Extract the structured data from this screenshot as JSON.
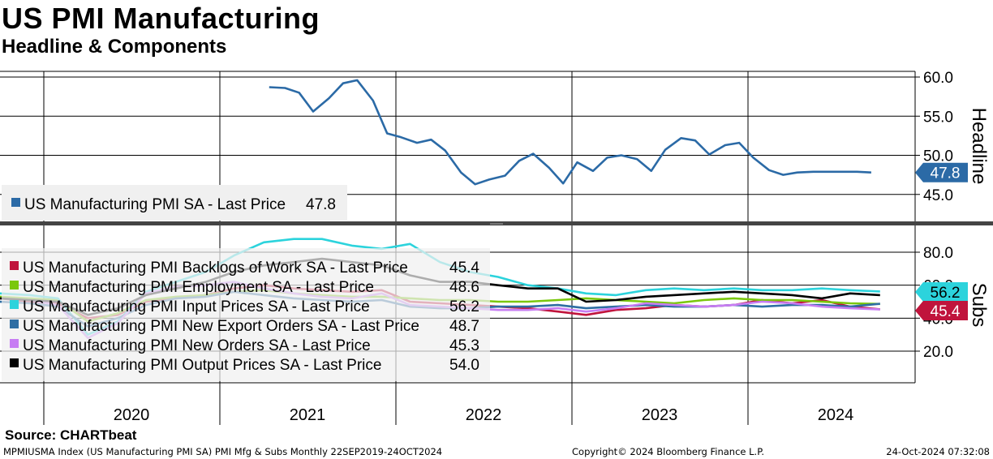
{
  "header": {
    "title": "US PMI Manufacturing",
    "subtitle": "Headline & Components"
  },
  "source": "Source:  CHARTbeat",
  "footer": {
    "left": "MPMIUSMA Index (US Manufacturing PMI SA) PMI Mfg & Subs  Monthly 22SEP2019-24OCT2024",
    "middle": "Copyright© 2024 Bloomberg Finance L.P.",
    "right": "24-Oct-2024 07:32:08"
  },
  "colors": {
    "headline": "#2b6aa6",
    "backlogs": "#c0143c",
    "employment": "#7ac70c",
    "input_prices": "#2cd3dc",
    "new_export_orders": "#2f6ea3",
    "new_orders": "#c77df3",
    "output_prices": "#000000"
  },
  "chart_data": [
    {
      "type": "line",
      "panel": "top",
      "axis_title": "Headline",
      "yticks": [
        "60.0",
        "55.0",
        "50.0",
        "45.0"
      ],
      "ylim": [
        41,
        61
      ],
      "xlim": [
        2019.7,
        2024.9
      ],
      "x_tick_labels": [
        "2020",
        "2021",
        "2022",
        "2023",
        "2024"
      ],
      "legend": [
        {
          "label": "US Manufacturing PMI SA - Last Price",
          "value": "47.8",
          "color_key": "headline"
        }
      ],
      "last_value_tag": {
        "text": "47.8",
        "value": 47.8
      },
      "series": [
        {
          "name": "US Manufacturing PMI SA",
          "color_key": "headline",
          "x": [
            2021.33,
            2021.42,
            2021.5,
            2021.58,
            2021.67,
            2021.75,
            2021.83,
            2021.92,
            2022.0,
            2022.08,
            2022.17,
            2022.25,
            2022.33,
            2022.42,
            2022.5,
            2022.58,
            2022.67,
            2022.75,
            2022.83,
            2022.92,
            2023.0,
            2023.08,
            2023.17,
            2023.25,
            2023.33,
            2023.42,
            2023.5,
            2023.58,
            2023.67,
            2023.75,
            2023.83,
            2023.92,
            2024.0,
            2024.08,
            2024.17,
            2024.25,
            2024.33,
            2024.42,
            2024.5,
            2024.58,
            2024.67,
            2024.75
          ],
          "values": [
            58.7,
            58.6,
            58.0,
            55.6,
            57.3,
            59.2,
            59.6,
            57.0,
            52.8,
            52.3,
            51.6,
            52.0,
            50.6,
            47.8,
            46.3,
            46.9,
            47.4,
            49.3,
            50.2,
            48.4,
            46.4,
            49.1,
            48.0,
            49.7,
            50.0,
            49.5,
            48.0,
            50.7,
            52.2,
            51.9,
            50.1,
            51.3,
            51.6,
            49.7,
            48.1,
            47.5,
            47.8,
            47.9,
            47.9,
            47.9,
            47.9,
            47.8
          ]
        }
      ]
    },
    {
      "type": "line",
      "panel": "bottom",
      "axis_title": "Subs",
      "yticks": [
        "80.0",
        "60.0",
        "40.0",
        "20.0"
      ],
      "ylim": [
        12,
        93
      ],
      "xlim": [
        2019.7,
        2024.9
      ],
      "legend": [
        {
          "label": "US Manufacturing PMI Backlogs of Work SA - Last Price",
          "value": "45.4",
          "color_key": "backlogs"
        },
        {
          "label": "US Manufacturing PMI Employment SA - Last Price",
          "value": "48.6",
          "color_key": "employment"
        },
        {
          "label": "US Manufacturing PMI Input Prices SA - Last Price",
          "value": "56.2",
          "color_key": "input_prices"
        },
        {
          "label": "US Manufacturing PMI New Export Orders SA - Last Price",
          "value": "48.7",
          "color_key": "new_export_orders"
        },
        {
          "label": "US Manufacturing PMI New Orders SA - Last Price",
          "value": "45.3",
          "color_key": "new_orders"
        },
        {
          "label": "US Manufacturing PMI Output Prices SA - Last Price",
          "value": "54.0",
          "color_key": "output_prices"
        }
      ],
      "last_value_tags": [
        {
          "text": "56.2",
          "value": 56.2,
          "color_key": "input_prices"
        },
        {
          "text": "45.4",
          "value": 45.4,
          "color_key": "backlogs"
        }
      ],
      "x": [
        2019.75,
        2019.92,
        2020.08,
        2020.25,
        2020.42,
        2020.58,
        2020.75,
        2020.92,
        2021.08,
        2021.25,
        2021.42,
        2021.58,
        2021.75,
        2021.92,
        2022.08,
        2022.25,
        2022.42,
        2022.58,
        2022.75,
        2022.92,
        2023.08,
        2023.25,
        2023.42,
        2023.58,
        2023.75,
        2023.92,
        2024.08,
        2024.25,
        2024.42,
        2024.58,
        2024.75
      ],
      "series": [
        {
          "name": "Backlogs of Work",
          "color_key": "backlogs",
          "values": [
            52,
            50,
            49,
            40,
            42,
            50,
            52,
            54,
            58,
            60,
            58,
            57,
            56,
            57,
            50,
            49,
            48,
            47,
            46,
            44,
            42,
            45,
            46,
            48,
            47,
            48,
            51,
            49,
            51,
            47,
            45.4
          ]
        },
        {
          "name": "Employment",
          "color_key": "employment",
          "values": [
            53,
            52,
            51,
            38,
            43,
            51,
            53,
            54,
            56,
            57,
            55,
            54,
            53,
            53,
            52,
            51,
            51,
            50,
            50,
            51,
            52,
            51,
            50,
            49,
            51,
            52,
            51,
            51,
            50,
            49,
            48.6
          ]
        },
        {
          "name": "Input Prices",
          "color_key": "input_prices",
          "values": [
            55,
            54,
            52,
            30,
            38,
            56,
            62,
            68,
            78,
            86,
            88,
            88,
            84,
            82,
            85,
            74,
            68,
            65,
            60,
            58,
            55,
            54,
            57,
            58,
            57,
            58,
            57,
            57,
            58,
            57,
            56.2
          ]
        },
        {
          "name": "New Export Orders",
          "color_key": "new_export_orders",
          "values": [
            50,
            49,
            47,
            35,
            40,
            48,
            52,
            53,
            56,
            54,
            52,
            51,
            50,
            51,
            47,
            46,
            46,
            47,
            47,
            48,
            46,
            47,
            48,
            47,
            47,
            48,
            47,
            48,
            48,
            47,
            48.7
          ]
        },
        {
          "name": "New Orders",
          "color_key": "new_orders",
          "values": [
            52,
            51,
            48,
            28,
            37,
            55,
            59,
            60,
            62,
            58,
            55,
            53,
            52,
            55,
            48,
            47,
            46,
            45,
            45,
            46,
            44,
            46,
            49,
            48,
            47,
            48,
            50,
            49,
            47,
            46,
            45.3
          ]
        },
        {
          "name": "Output Prices",
          "color_key": "output_prices",
          "values": [
            52,
            51,
            50,
            42,
            46,
            54,
            58,
            62,
            68,
            72,
            74,
            76,
            74,
            72,
            66,
            62,
            62,
            60,
            58,
            58,
            50,
            51,
            53,
            54,
            55,
            56,
            55,
            54,
            52,
            55,
            54.0
          ]
        }
      ]
    }
  ]
}
